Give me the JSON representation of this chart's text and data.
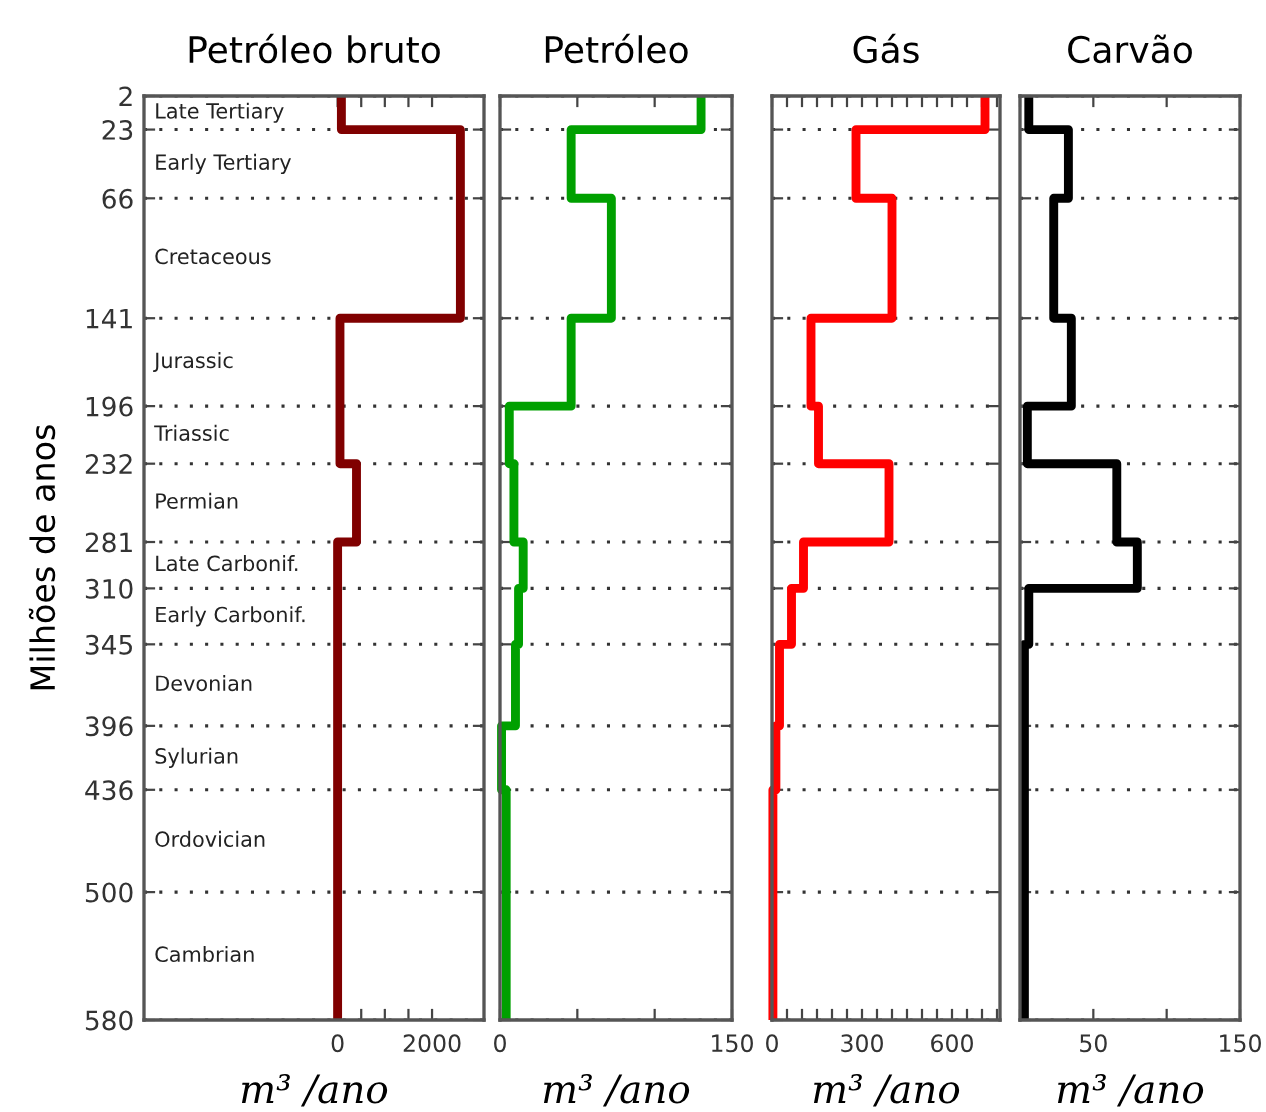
{
  "chart_data": [
    {
      "type": "step",
      "orientation": "horizontal",
      "title": "Petróleo bruto",
      "xlabel": "m³ /ano",
      "ylabel": "Milhões de anos",
      "grid": "y",
      "line_style": "solid",
      "x": [
        2,
        23,
        66,
        141,
        196,
        232,
        281,
        310,
        345,
        396,
        436,
        500,
        580
      ],
      "series": [
        {
          "color": "#800000",
          "values": [
            80,
            2600,
            2600,
            50,
            50,
            400,
            0,
            0,
            0,
            0,
            0,
            0,
            0
          ]
        }
      ],
      "xlim": [
        -4100,
        3100
      ],
      "xticks": [
        0,
        {
          "value": 500,
          "label": null
        },
        {
          "value": 1000,
          "label": null
        },
        {
          "value": 1500,
          "label": null
        },
        2000
      ],
      "ylim": [
        580,
        2
      ],
      "yticks": [
        2,
        23,
        66,
        141,
        196,
        232,
        281,
        310,
        345,
        396,
        436,
        500,
        580
      ],
      "annotations": [
        "Late Tertiary",
        "Early Tertiary",
        "Cretaceous",
        "Jurassic",
        "Triassic",
        "Permian",
        "Late Carbonif.",
        "Early Carbonif.",
        "Devonian",
        "Sylurian",
        "Ordovician",
        "Cambrian"
      ]
    },
    {
      "type": "step",
      "orientation": "horizontal",
      "title": "Petróleo",
      "xlabel": "m³ /ano",
      "grid": "y",
      "tick_labels": "x",
      "line_style": "solid",
      "x": [
        2,
        23,
        66,
        141,
        196,
        232,
        281,
        310,
        345,
        396,
        436,
        500,
        580
      ],
      "series": [
        {
          "color": "#00a000",
          "values": [
            130,
            46,
            72,
            46,
            6,
            9,
            15,
            12,
            10,
            1,
            4,
            4,
            4
          ]
        }
      ],
      "xlim": [
        0,
        150
      ],
      "xticks": [
        0,
        {
          "value": 50,
          "label": null
        },
        {
          "value": 100,
          "label": null
        },
        150
      ],
      "ylim": [
        580,
        2
      ],
      "yticks": [
        {
          "value": 2,
          "label": null
        },
        {
          "value": 23,
          "label": null
        },
        {
          "value": 66,
          "label": null
        },
        {
          "value": 141,
          "label": null
        },
        {
          "value": 196,
          "label": null
        },
        {
          "value": 232,
          "label": null
        },
        {
          "value": 281,
          "label": null
        },
        {
          "value": 310,
          "label": null
        },
        {
          "value": 345,
          "label": null
        },
        {
          "value": 396,
          "label": null
        },
        {
          "value": 436,
          "label": null
        },
        {
          "value": 500,
          "label": null
        },
        {
          "value": 580,
          "label": null
        }
      ]
    },
    {
      "type": "step",
      "orientation": "horizontal",
      "title": "Gás",
      "xlabel": "m³ /ano",
      "grid": "y",
      "tick_labels": "x",
      "line_style": "solid",
      "x": [
        2,
        23,
        66,
        141,
        196,
        232,
        281,
        310,
        345,
        396,
        436,
        500,
        580
      ],
      "series": [
        {
          "color": "#ff0000",
          "values": [
            710,
            280,
            400,
            130,
            155,
            390,
            105,
            65,
            25,
            13,
            3,
            3,
            3
          ]
        }
      ],
      "xlim": [
        0,
        760
      ],
      "xticks": [
        0,
        {
          "value": 50,
          "label": null
        },
        {
          "value": 100,
          "label": null
        },
        {
          "value": 150,
          "label": null
        },
        {
          "value": 200,
          "label": null
        },
        {
          "value": 250,
          "label": null
        },
        300,
        {
          "value": 350,
          "label": null
        },
        {
          "value": 400,
          "label": null
        },
        {
          "value": 450,
          "label": null
        },
        {
          "value": 500,
          "label": null
        },
        {
          "value": 550,
          "label": null
        },
        600,
        {
          "value": 650,
          "label": null
        },
        {
          "value": 700,
          "label": null
        },
        {
          "value": 750,
          "label": null
        }
      ],
      "ylim": [
        580,
        2
      ],
      "yticks": [
        {
          "value": 2,
          "label": null
        },
        {
          "value": 23,
          "label": null
        },
        {
          "value": 66,
          "label": null
        },
        {
          "value": 141,
          "label": null
        },
        {
          "value": 196,
          "label": null
        },
        {
          "value": 232,
          "label": null
        },
        {
          "value": 281,
          "label": null
        },
        {
          "value": 310,
          "label": null
        },
        {
          "value": 345,
          "label": null
        },
        {
          "value": 396,
          "label": null
        },
        {
          "value": 436,
          "label": null
        },
        {
          "value": 500,
          "label": null
        },
        {
          "value": 580,
          "label": null
        }
      ]
    },
    {
      "type": "step",
      "orientation": "horizontal",
      "title": "Carvão",
      "xlabel": "m³ /ano",
      "grid": "y",
      "tick_labels": "x",
      "line_style": "solid",
      "x": [
        2,
        23,
        66,
        141,
        196,
        232,
        281,
        310,
        345,
        396,
        436,
        500,
        580
      ],
      "series": [
        {
          "color": "#000000",
          "values": [
            6,
            33,
            23,
            35,
            5,
            66,
            80,
            6,
            3,
            3,
            3,
            3,
            3
          ]
        }
      ],
      "xlim": [
        0,
        150
      ],
      "xticks": [
        {
          "value": 0,
          "label": null
        },
        50,
        {
          "value": 100,
          "label": null
        },
        150
      ],
      "ylim": [
        580,
        2
      ],
      "yticks": [
        {
          "value": 2,
          "label": null
        },
        {
          "value": 23,
          "label": null
        },
        {
          "value": 66,
          "label": null
        },
        {
          "value": 141,
          "label": null
        },
        {
          "value": 196,
          "label": null
        },
        {
          "value": 232,
          "label": null
        },
        {
          "value": 281,
          "label": null
        },
        {
          "value": 310,
          "label": null
        },
        {
          "value": 345,
          "label": null
        },
        {
          "value": 396,
          "label": null
        },
        {
          "value": 436,
          "label": null
        },
        {
          "value": 500,
          "label": null
        },
        {
          "value": 580,
          "label": null
        }
      ]
    }
  ]
}
